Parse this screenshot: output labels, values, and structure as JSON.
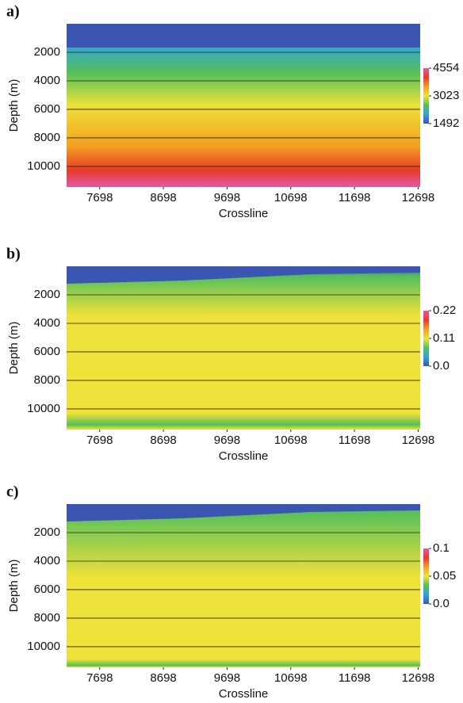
{
  "chart_data": [
    {
      "type": "heatmap",
      "panel_label": "a)",
      "ylabel": "Depth (m)",
      "xlabel": "Crossline",
      "xlim": [
        7178,
        12730
      ],
      "xticks": [
        7698,
        8698,
        9698,
        10698,
        11698,
        12698
      ],
      "ylim": [
        0,
        11450
      ],
      "yticks": [
        2000,
        4000,
        6000,
        8000,
        10000
      ],
      "grid": true,
      "colormap": [
        "#3a56b0",
        "#33a3dc",
        "#55bf5a",
        "#eee23a",
        "#f3a020",
        "#e83a2a",
        "#e05aa8"
      ],
      "clim": [
        1492,
        4554
      ],
      "cticks": [
        1492,
        3023,
        4554
      ]
    },
    {
      "type": "heatmap",
      "panel_label": "b)",
      "ylabel": "Depth (m)",
      "xlabel": "Crossline",
      "xlim": [
        7178,
        12730
      ],
      "xticks": [
        7698,
        8698,
        9698,
        10698,
        11698,
        12698
      ],
      "ylim": [
        0,
        11450
      ],
      "yticks": [
        2000,
        4000,
        6000,
        8000,
        10000
      ],
      "grid": true,
      "colormap": [
        "#3a56b0",
        "#33a3dc",
        "#55bf5a",
        "#eee23a",
        "#f3a020",
        "#e83a2a",
        "#e05aa8"
      ],
      "clim": [
        0,
        0.22
      ],
      "cticks": [
        {
          "value": 0,
          "label": "0.0"
        },
        0.11,
        0.22
      ]
    },
    {
      "type": "heatmap",
      "panel_label": "c)",
      "ylabel": "Depth (m)",
      "xlabel": "Crossline",
      "xlim": [
        7178,
        12730
      ],
      "xticks": [
        7698,
        8698,
        9698,
        10698,
        11698,
        12698
      ],
      "ylim": [
        0,
        11450
      ],
      "yticks": [
        2000,
        4000,
        6000,
        8000,
        10000
      ],
      "grid": true,
      "colormap": [
        "#3a56b0",
        "#33a3dc",
        "#55bf5a",
        "#eee23a",
        "#f3a020",
        "#e83a2a",
        "#e05aa8"
      ],
      "clim": [
        0,
        0.1
      ],
      "cticks": [
        {
          "value": 0,
          "label": "0.0"
        },
        0.05,
        0.1
      ]
    }
  ]
}
